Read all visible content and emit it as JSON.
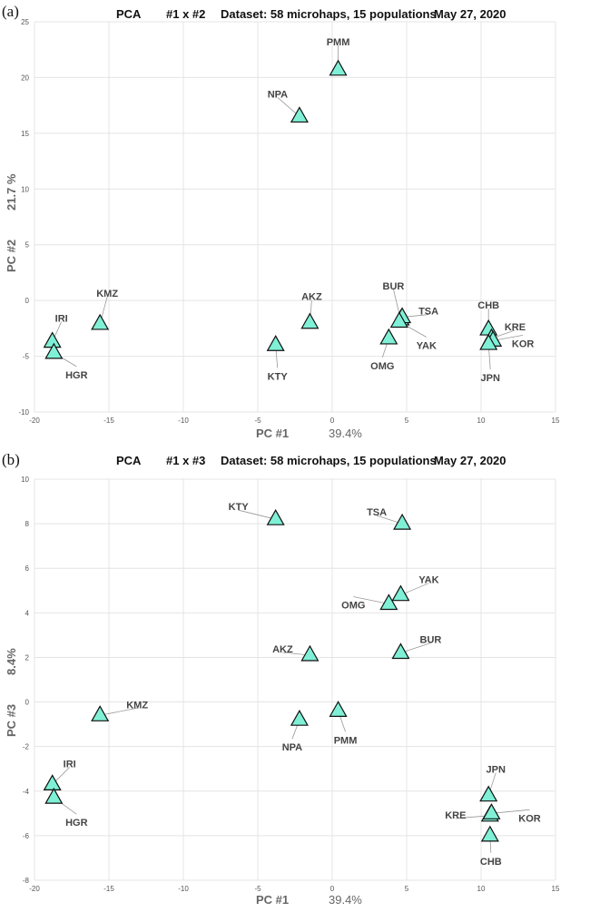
{
  "colors": {
    "marker": "#7ff0d6",
    "marker_stroke": "#111111",
    "grid": "#e4e4e4",
    "leader": "#999999"
  },
  "chart_data": [
    {
      "type": "scatter",
      "panel": "(a)",
      "title_parts": [
        "PCA",
        "#1 x #2",
        "Dataset:  58 microhaps, 15 populations",
        "May 27, 2020"
      ],
      "xlabel": "PC #1",
      "xlabel_value": "39.4%",
      "ylabel": "PC #2",
      "ylabel_value": "21.7 %",
      "xlim": [
        -20,
        15
      ],
      "ylim": [
        -10,
        25
      ],
      "xticks": [
        -20,
        -15,
        -10,
        -5,
        0,
        5,
        10,
        15
      ],
      "yticks": [
        -10,
        -5,
        0,
        5,
        10,
        15,
        20,
        25
      ],
      "grid": true,
      "points": [
        {
          "label": "PMM",
          "x": 0.4,
          "y": 20.7
        },
        {
          "label": "NPA",
          "x": -2.2,
          "y": 16.5
        },
        {
          "label": "KMZ",
          "x": -15.6,
          "y": -2.1
        },
        {
          "label": "IRI",
          "x": -18.8,
          "y": -3.7
        },
        {
          "label": "HGR",
          "x": -18.7,
          "y": -4.7
        },
        {
          "label": "AKZ",
          "x": -1.5,
          "y": -2.0
        },
        {
          "label": "KTY",
          "x": -3.8,
          "y": -4.0
        },
        {
          "label": "BUR",
          "x": 4.6,
          "y": -1.7
        },
        {
          "label": "TSA",
          "x": 4.7,
          "y": -1.5
        },
        {
          "label": "YAK",
          "x": 4.5,
          "y": -1.9
        },
        {
          "label": "OMG",
          "x": 3.8,
          "y": -3.4
        },
        {
          "label": "CHB",
          "x": 10.5,
          "y": -2.6
        },
        {
          "label": "KRE",
          "x": 10.7,
          "y": -3.4
        },
        {
          "label": "KOR",
          "x": 10.8,
          "y": -3.6
        },
        {
          "label": "JPN",
          "x": 10.5,
          "y": -3.9
        }
      ]
    },
    {
      "type": "scatter",
      "panel": "(b)",
      "title_parts": [
        "PCA",
        "#1 x #3",
        "Dataset:  58 microhaps, 15 populations",
        "May 27, 2020"
      ],
      "xlabel": "PC #1",
      "xlabel_value": "39.4%",
      "ylabel": "PC #3",
      "ylabel_value": "8.4%",
      "xlim": [
        -20,
        15
      ],
      "ylim": [
        -8,
        10
      ],
      "xticks": [
        -20,
        -15,
        -10,
        -5,
        0,
        5,
        10,
        15
      ],
      "yticks": [
        -8,
        -6,
        -4,
        -2,
        0,
        2,
        4,
        6,
        8,
        10
      ],
      "grid": true,
      "points": [
        {
          "label": "KTY",
          "x": -3.8,
          "y": 8.2
        },
        {
          "label": "TSA",
          "x": 4.7,
          "y": 8.0
        },
        {
          "label": "YAK",
          "x": 4.6,
          "y": 4.8
        },
        {
          "label": "OMG",
          "x": 3.8,
          "y": 4.4
        },
        {
          "label": "AKZ",
          "x": -1.5,
          "y": 2.1
        },
        {
          "label": "BUR",
          "x": 4.6,
          "y": 2.2
        },
        {
          "label": "KMZ",
          "x": -15.6,
          "y": -0.6
        },
        {
          "label": "NPA",
          "x": -2.2,
          "y": -0.8
        },
        {
          "label": "PMM",
          "x": 0.4,
          "y": -0.4
        },
        {
          "label": "IRI",
          "x": -18.8,
          "y": -3.7
        },
        {
          "label": "HGR",
          "x": -18.7,
          "y": -4.3
        },
        {
          "label": "JPN",
          "x": 10.5,
          "y": -4.2
        },
        {
          "label": "KRE",
          "x": 10.6,
          "y": -5.1
        },
        {
          "label": "KOR",
          "x": 10.7,
          "y": -5.0
        },
        {
          "label": "CHB",
          "x": 10.6,
          "y": -6.0
        }
      ]
    }
  ]
}
